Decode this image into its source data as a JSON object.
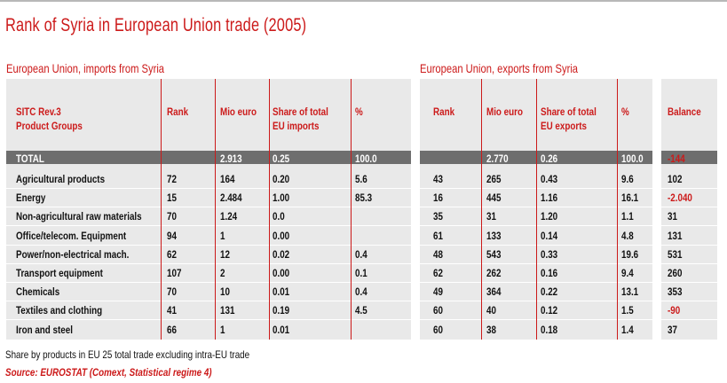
{
  "title": "Rank of Syria in European Union trade (2005)",
  "imports": {
    "section_title": "European Union, imports from Syria",
    "headers": {
      "group": "SITC Rev.3\nProduct Groups",
      "rank": "Rank",
      "mio": "Mio euro",
      "share": "Share of total\nEU imports",
      "pct": "%"
    }
  },
  "exports": {
    "section_title": "European Union, exports from Syria",
    "headers": {
      "rank": "Rank",
      "mio": "Mio euro",
      "share": "Share of total\nEU exports",
      "pct": "%"
    }
  },
  "balance_header": "Balance",
  "total": {
    "label": "TOTAL",
    "imp": {
      "rank": "",
      "mio": "2.913",
      "share": "0.25",
      "pct": "100.0"
    },
    "exp": {
      "rank": "",
      "mio": "2.770",
      "share": "0.26",
      "pct": "100.0"
    },
    "balance": "-144"
  },
  "rows": [
    {
      "group": "Agricultural products",
      "imp": {
        "rank": "72",
        "mio": "164",
        "share": "0.20",
        "pct": "5.6"
      },
      "exp": {
        "rank": "43",
        "mio": "265",
        "share": "0.43",
        "pct": "9.6"
      },
      "balance": "102",
      "neg": false
    },
    {
      "group": "Energy",
      "imp": {
        "rank": "15",
        "mio": "2.484",
        "share": "1.00",
        "pct": "85.3"
      },
      "exp": {
        "rank": "16",
        "mio": "445",
        "share": "1.16",
        "pct": "16.1"
      },
      "balance": "-2.040",
      "neg": true
    },
    {
      "group": "Non-agricultural raw materials",
      "imp": {
        "rank": "70",
        "mio": "1.24",
        "share": "0.0",
        "pct": ""
      },
      "exp": {
        "rank": "35",
        "mio": "31",
        "share": "1.20",
        "pct": "1.1"
      },
      "balance": "31",
      "neg": false
    },
    {
      "group": "Office/telecom. Equipment",
      "imp": {
        "rank": "94",
        "mio": "1",
        "share": "0.00",
        "pct": ""
      },
      "exp": {
        "rank": "61",
        "mio": "133",
        "share": "0.14",
        "pct": "4.8"
      },
      "balance": "131",
      "neg": false
    },
    {
      "group": "Power/non-electrical mach.",
      "imp": {
        "rank": "62",
        "mio": "12",
        "share": "0.02",
        "pct": "0.4"
      },
      "exp": {
        "rank": "48",
        "mio": "543",
        "share": "0.33",
        "pct": "19.6"
      },
      "balance": "531",
      "neg": false
    },
    {
      "group": "Transport equipment",
      "imp": {
        "rank": "107",
        "mio": "2",
        "share": "0.00",
        "pct": "0.1"
      },
      "exp": {
        "rank": "62",
        "mio": "262",
        "share": "0.16",
        "pct": "9.4"
      },
      "balance": "260",
      "neg": false
    },
    {
      "group": "Chemicals",
      "imp": {
        "rank": "70",
        "mio": "10",
        "share": "0.01",
        "pct": "0.4"
      },
      "exp": {
        "rank": "49",
        "mio": "364",
        "share": "0.22",
        "pct": "13.1"
      },
      "balance": "353",
      "neg": false
    },
    {
      "group": "Textiles and clothing",
      "imp": {
        "rank": "41",
        "mio": "131",
        "share": "0.19",
        "pct": "4.5"
      },
      "exp": {
        "rank": "60",
        "mio": "40",
        "share": "0.12",
        "pct": "1.5"
      },
      "balance": "-90",
      "neg": true
    },
    {
      "group": "Iron and steel",
      "imp": {
        "rank": "66",
        "mio": "1",
        "share": "0.01",
        "pct": ""
      },
      "exp": {
        "rank": "60",
        "mio": "38",
        "share": "0.18",
        "pct": "1.4"
      },
      "balance": "37",
      "neg": false
    }
  ],
  "footnote": "Share by products in EU 25 total trade excluding intra-EU trade",
  "source": "Source: EUROSTAT (Comext, Statistical regime 4)",
  "colors": {
    "accent": "#cc1a1a",
    "panel": "#e9e9e9",
    "total_bar": "#6e6e6e"
  }
}
